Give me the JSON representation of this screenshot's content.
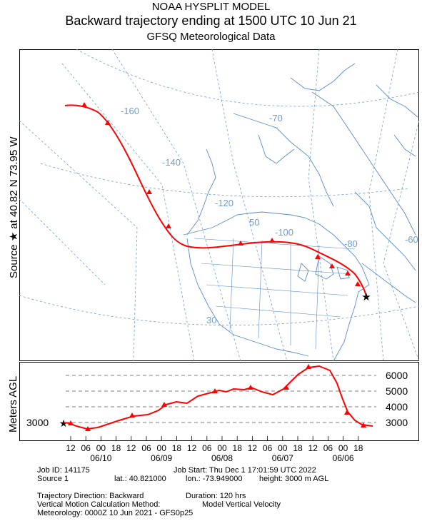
{
  "header": {
    "line1": "NOAA HYSPLIT MODEL",
    "line2": "Backward trajectory ending at 1500 UTC 10 Jun 21",
    "line3": "GFSQ Meteorological Data"
  },
  "side_label": "Source ★  at   40.82 N   73.95 W",
  "altitude_axis_label": "Meters AGL",
  "map": {
    "graticule_labels": [
      "-160",
      "-140",
      "-120",
      "-100",
      "-80",
      "-70",
      "-60",
      "50",
      "30"
    ],
    "colors": {
      "trajectory": "#ff0000",
      "coastline": "#5a8ccc",
      "graticule": "#6f9fd0"
    }
  },
  "altitude_panel": {
    "source_height_label": "3000",
    "right_ticks": [
      "6000",
      "5000",
      "4000",
      "3000"
    ],
    "hour_ticks": [
      "12",
      "06",
      "00",
      "18",
      "12",
      "06",
      "00",
      "18",
      "12",
      "06",
      "00",
      "18",
      "12",
      "06",
      "00",
      "18",
      "12",
      "06",
      "00",
      "18"
    ],
    "date_labels": [
      "06/10",
      "06/09",
      "06/08",
      "06/07",
      "06/06"
    ]
  },
  "info": {
    "job_id": "Job ID: 141175",
    "job_start": "Job Start: Thu Dec  1 17:01:59 UTC 2022",
    "source": "Source 1",
    "lat": "lat.: 40.821000",
    "lon": "lon.: -73.949000",
    "height": "height: 3000 m AGL",
    "direction": "Trajectory Direction: Backward",
    "duration": "Duration: 120 hrs",
    "vertical_method": "Vertical Motion Calculation Method:",
    "vertical_method_value": "Model Vertical Velocity",
    "meteorology": "Meteorology: 0000Z 10 Jun 2021 - GFS0p25"
  }
}
